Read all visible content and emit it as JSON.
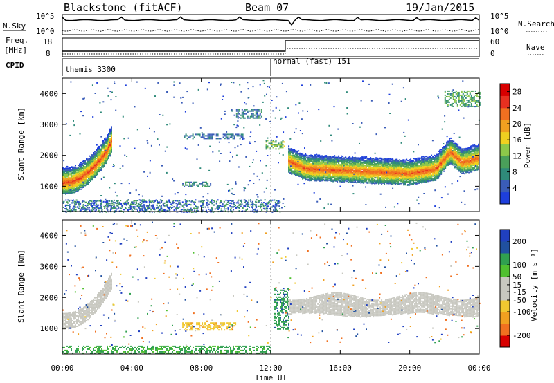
{
  "header": {
    "radar": "Blackstone (fitACF)",
    "beam": "Beam 07",
    "date": "19/Jan/2015"
  },
  "labels": {
    "nsky": "N.Sky",
    "freq_line1": "Freq.",
    "freq_line2": "[MHz]",
    "cpid": "CPID",
    "nsearch": "N.Search",
    "nave": "Nave",
    "xlabel": "Time UT",
    "power_ylabel": "Slant Range [km]",
    "vel_ylabel": "Slant Range [km]",
    "power_cbar_label": "Power [dB]",
    "vel_cbar_label": "Velocity [m s⁻¹]"
  },
  "noise_panel": {
    "left_ticks": [
      "10^5",
      "10^0"
    ],
    "right_ticks": [
      "10^5",
      "10^0"
    ]
  },
  "freq_panel": {
    "left_ticks": [
      "18",
      "8"
    ],
    "right_ticks": [
      "60",
      "0"
    ]
  },
  "cpid_panel": {
    "segments": [
      {
        "label": "themis 3300",
        "start": "00:00",
        "end": "12:00"
      },
      {
        "label": "normal (fast) 151",
        "start": "12:00",
        "end": "24:00"
      }
    ]
  },
  "colors": {
    "power": [
      "#1e3fdc",
      "#3a5cb8",
      "#2f8a7a",
      "#4aa05a",
      "#8cc84a",
      "#f0d020",
      "#f0a020",
      "#f07020",
      "#e83020",
      "#d80000"
    ],
    "velocity": [
      "#d80000",
      "#f07020",
      "#f0a020",
      "#f0c830",
      "#c8c8c0",
      "#c8c8c0",
      "#50c030",
      "#30a050",
      "#2050a0",
      "#2040c0"
    ]
  },
  "chart_data": [
    {
      "type": "heatmap",
      "name": "power",
      "xlabel": "Time UT",
      "ylabel": "Slant Range [km]",
      "x_ticks": [
        "00:00",
        "04:00",
        "08:00",
        "12:00",
        "16:00",
        "20:00",
        "00:00"
      ],
      "x_range_hours": [
        0,
        24
      ],
      "y_ticks": [
        1000,
        2000,
        3000,
        4000
      ],
      "ylim": [
        180,
        4500
      ],
      "colorbar": {
        "label": "Power [dB]",
        "ticks": [
          4,
          8,
          12,
          16,
          20,
          24,
          28
        ],
        "range": [
          0,
          30
        ]
      },
      "features": [
        {
          "desc": "main band",
          "x": [
            0.0,
            0.5,
            1.0,
            1.5,
            2.0,
            2.5,
            2.8
          ],
          "y": [
            1150,
            1180,
            1300,
            1500,
            1800,
            2150,
            2500
          ],
          "peak_db": 25
        },
        {
          "desc": "main band",
          "x": [
            13.0,
            14.0,
            16.0,
            18.0,
            20.0,
            21.5,
            22.3,
            23.0,
            24.0
          ],
          "y": [
            1850,
            1600,
            1550,
            1500,
            1450,
            1600,
            2150,
            1800,
            1950
          ],
          "peak_db": 24
        },
        {
          "desc": "patch",
          "x": [
            6.9,
            8.5
          ],
          "y": [
            1000,
            1150
          ],
          "peak_db": 10
        },
        {
          "desc": "patch",
          "x": [
            7.0,
            10.5
          ],
          "y": [
            2550,
            2700
          ],
          "peak_db": 6
        },
        {
          "desc": "patch",
          "x": [
            10.0,
            11.5
          ],
          "y": [
            3200,
            3500
          ],
          "peak_db": 8
        },
        {
          "desc": "patch",
          "x": [
            11.7,
            12.8
          ],
          "y": [
            2200,
            2500
          ],
          "peak_db": 14
        },
        {
          "desc": "patch",
          "x": [
            22.0,
            24.0
          ],
          "y": [
            3600,
            4100
          ],
          "peak_db": 12
        }
      ]
    },
    {
      "type": "heatmap",
      "name": "velocity",
      "xlabel": "Time UT",
      "ylabel": "Slant Range [km]",
      "x_ticks": [
        "00:00",
        "04:00",
        "08:00",
        "12:00",
        "16:00",
        "20:00",
        "00:00"
      ],
      "x_range_hours": [
        0,
        24
      ],
      "y_ticks": [
        1000,
        2000,
        3000,
        4000
      ],
      "ylim": [
        180,
        4500
      ],
      "colorbar": {
        "label": "Velocity [m s⁻¹]",
        "ticks": [
          200,
          100,
          50,
          15,
          -15,
          -50,
          -100,
          -200
        ],
        "range": [
          -250,
          250
        ]
      },
      "features": [
        {
          "desc": "main band",
          "x": [
            0.0,
            2.8
          ],
          "y": [
            1100,
            2500
          ],
          "value": 0
        },
        {
          "desc": "main band",
          "x": [
            13.0,
            24.0
          ],
          "y": [
            1450,
            2000
          ],
          "value": 0
        },
        {
          "desc": "patch",
          "x": [
            6.9,
            10.0
          ],
          "y": [
            950,
            1200
          ],
          "value": -40
        },
        {
          "desc": "patch",
          "x": [
            12.2,
            13.0
          ],
          "y": [
            1000,
            2300
          ],
          "value": 40
        },
        {
          "desc": "patch",
          "x": [
            0.0,
            12.0
          ],
          "y": [
            200,
            450
          ],
          "value": 30
        }
      ]
    }
  ]
}
